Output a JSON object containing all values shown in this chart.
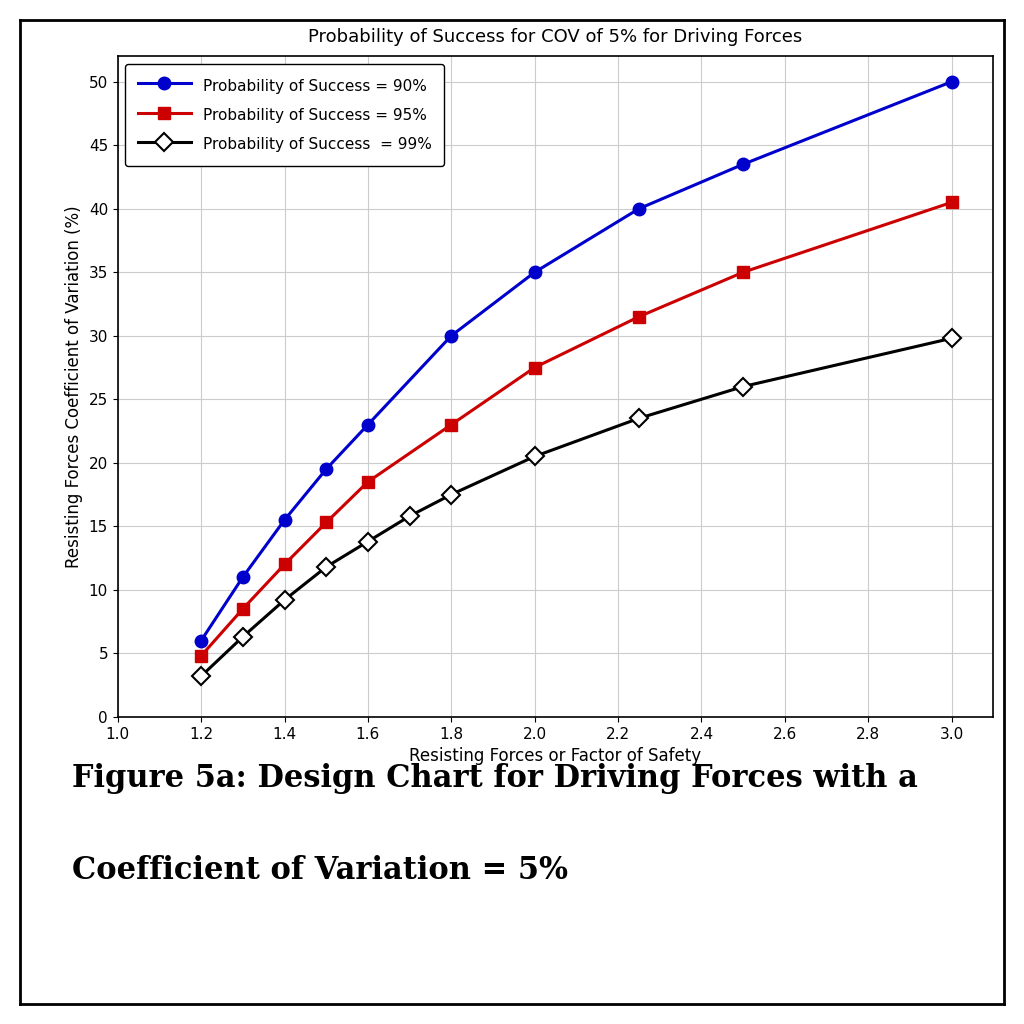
{
  "title": "Probability of Success for COV of 5% for Driving Forces",
  "xlabel": "Resisting Forces or Factor of Safety",
  "ylabel": "Resisting Forces Coefficient of Variation (%)",
  "caption_line1": "Figure 5a: Design Chart for Driving Forces with a",
  "caption_line2": "Coefficient of Variation = 5%",
  "xlim": [
    1.0,
    3.1
  ],
  "ylim": [
    0,
    52
  ],
  "xticks": [
    1.0,
    1.2,
    1.4,
    1.6,
    1.8,
    2.0,
    2.2,
    2.4,
    2.6,
    2.8,
    3.0
  ],
  "yticks": [
    0,
    5,
    10,
    15,
    20,
    25,
    30,
    35,
    40,
    45,
    50
  ],
  "series": [
    {
      "label": "Probability of Success = 90%",
      "color": "#0000CC",
      "marker": "o",
      "marker_facecolor": "#0000CC",
      "marker_edgecolor": "#0000CC",
      "x": [
        1.2,
        1.3,
        1.4,
        1.5,
        1.6,
        1.8,
        2.0,
        2.25,
        2.5,
        3.0
      ],
      "y": [
        6.0,
        11.0,
        15.5,
        19.5,
        23.0,
        30.0,
        35.0,
        40.0,
        43.5,
        50.0
      ]
    },
    {
      "label": "Probability of Success = 95%",
      "color": "#CC0000",
      "marker": "s",
      "marker_facecolor": "#CC0000",
      "marker_edgecolor": "#CC0000",
      "x": [
        1.2,
        1.3,
        1.4,
        1.5,
        1.6,
        1.8,
        2.0,
        2.25,
        2.5,
        3.0
      ],
      "y": [
        4.8,
        8.5,
        12.0,
        15.3,
        18.5,
        23.0,
        27.5,
        31.5,
        35.0,
        40.5
      ]
    },
    {
      "label": "Probability of Success  = 99%",
      "color": "#000000",
      "marker": "D",
      "marker_facecolor": "#ffffff",
      "marker_edgecolor": "#000000",
      "x": [
        1.2,
        1.3,
        1.4,
        1.5,
        1.6,
        1.7,
        1.8,
        2.0,
        2.25,
        2.5,
        3.0
      ],
      "y": [
        3.2,
        6.3,
        9.2,
        11.8,
        13.8,
        15.8,
        17.5,
        20.5,
        23.5,
        26.0,
        29.8
      ]
    }
  ],
  "background_color": "#ffffff",
  "grid_color": "#cccccc",
  "title_fontsize": 13,
  "label_fontsize": 12,
  "tick_fontsize": 11,
  "legend_fontsize": 11,
  "caption_fontsize": 22,
  "marker_size": 9,
  "linewidth": 2.2
}
